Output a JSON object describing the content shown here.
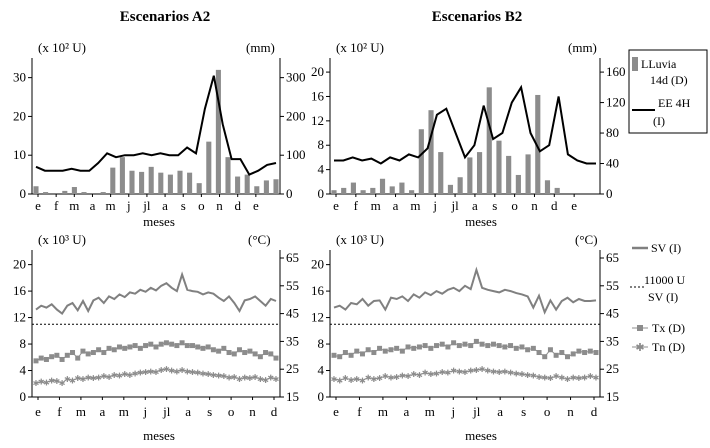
{
  "titles": {
    "a2": "Escenarios A2",
    "b2": "Escenarios B2"
  },
  "colors": {
    "bar": "#8c8c8c",
    "line": "#000000",
    "sv": "#808080",
    "tx": "#8c8c8c",
    "tn": "#8c8c8c",
    "threshold": "#000000"
  },
  "legend_top": {
    "rain": [
      "LLuvia",
      "14d (D)"
    ],
    "ee": [
      "EE 4H",
      "(I)"
    ]
  },
  "legend_bottom": {
    "sv": "SV (I)",
    "threshold": [
      "11000 U",
      "SV (I)"
    ],
    "tx": "Tx (D)",
    "tn": "Tn (D)"
  },
  "chart_data": [
    {
      "type": "bar+line",
      "id": "a2_top",
      "title": "Escenarios A2",
      "left_unit": "(x 10² U)",
      "right_unit": "(mm)",
      "xlabel": "meses",
      "month_labels": [
        "e",
        "f",
        "m",
        "a",
        "m",
        "j",
        "jl",
        "a",
        "s",
        "o",
        "n",
        "d",
        "e"
      ],
      "left_ticks": [
        "0",
        "10",
        "20",
        "30"
      ],
      "right_ticks": [
        "0",
        "100",
        "200",
        "300"
      ],
      "ylim_left": [
        0,
        33
      ],
      "ylim_right": [
        0,
        330
      ],
      "series": [
        {
          "name": "LLuvia 14d (D)",
          "kind": "bar",
          "axis": "right",
          "values": [
            20,
            5,
            0,
            8,
            18,
            5,
            0,
            5,
            68,
            95,
            60,
            57,
            70,
            55,
            50,
            60,
            55,
            28,
            135,
            320,
            95,
            45,
            50,
            20,
            35,
            38
          ]
        },
        {
          "name": "EE 4H (I)",
          "kind": "line",
          "axis": "left",
          "values": [
            7,
            6,
            6,
            6,
            6.5,
            6,
            6,
            8,
            10.5,
            9.5,
            10,
            10,
            10.5,
            10,
            10.5,
            10,
            10,
            12,
            10.5,
            22,
            30.5,
            18,
            9,
            9,
            5,
            6,
            7.5,
            8
          ]
        }
      ]
    },
    {
      "type": "bar+line",
      "id": "b2_top",
      "title": "Escenarios B2",
      "left_unit": "(x 10² U)",
      "right_unit": "(mm)",
      "xlabel": "meses",
      "month_labels": [
        "e",
        "f",
        "m",
        "a",
        "m",
        "j",
        "jl",
        "a",
        "s",
        "o",
        "n",
        "d",
        "e"
      ],
      "left_ticks": [
        "0",
        "4",
        "8",
        "12",
        "16",
        "20"
      ],
      "right_ticks": [
        "0",
        "40",
        "80",
        "120",
        "160"
      ],
      "ylim_left": [
        0,
        21
      ],
      "ylim_right": [
        0,
        168
      ],
      "series": [
        {
          "name": "LLuvia 14d (D)",
          "kind": "bar",
          "axis": "right",
          "values": [
            5,
            8,
            15,
            5,
            8,
            20,
            10,
            15,
            5,
            85,
            110,
            55,
            12,
            22,
            48,
            55,
            140,
            70,
            50,
            25,
            52,
            130,
            18,
            8,
            0,
            0,
            0,
            0
          ]
        },
        {
          "name": "EE 4H (I)",
          "kind": "line",
          "axis": "left",
          "values": [
            5.5,
            5.5,
            6,
            5.5,
            5.8,
            5,
            6,
            5.5,
            6.5,
            6,
            7.5,
            13,
            14,
            10,
            6,
            8,
            14.5,
            9,
            10,
            15,
            17.5,
            10,
            7,
            8,
            16,
            6.5,
            5.5,
            5,
            5
          ]
        }
      ]
    },
    {
      "type": "line",
      "id": "a2_bottom",
      "left_unit": "(x 10³ U)",
      "right_unit": "(°C)",
      "xlabel": "meses",
      "month_labels": [
        "e",
        "f",
        "m",
        "a",
        "m",
        "j",
        "jl",
        "a",
        "s",
        "o",
        "n",
        "d"
      ],
      "left_ticks": [
        "0",
        "4",
        "8",
        "12",
        "16",
        "20"
      ],
      "right_ticks": [
        "15",
        "25",
        "35",
        "45",
        "55",
        "65"
      ],
      "ylim_left": [
        0,
        21
      ],
      "ylim_right": [
        15,
        65
      ],
      "threshold": 11,
      "series": [
        {
          "name": "SV (I)",
          "kind": "line",
          "axis": "left",
          "values": [
            13.2,
            13.8,
            13.5,
            14,
            13.2,
            12.6,
            13.8,
            14.2,
            13.1,
            14.5,
            13,
            14.6,
            15,
            14.2,
            15.2,
            14.8,
            15.5,
            15.1,
            15.8,
            15.6,
            16.2,
            15.9,
            16.5,
            16.1,
            16.8,
            17.2,
            16.5,
            16,
            18.5,
            16.2,
            16,
            15.9,
            15.5,
            15.8,
            15.6,
            15,
            14.5,
            15.2,
            14.2,
            13,
            14.6,
            14.8,
            15.2,
            14.5,
            13.8,
            14.8,
            14.5
          ]
        },
        {
          "name": "Tx (D)",
          "kind": "marker-line",
          "axis": "right",
          "values": [
            28,
            29,
            28.5,
            29.5,
            30,
            28.5,
            30,
            31,
            29,
            31.5,
            30.5,
            31,
            32,
            31,
            32.5,
            32,
            33,
            32.5,
            33,
            33.5,
            32.5,
            33.5,
            34,
            33,
            34,
            34.5,
            34,
            33.5,
            34.5,
            33.5,
            33.5,
            33,
            32.5,
            33,
            32,
            31.5,
            32.5,
            31,
            30.5,
            32,
            31,
            31.5,
            30.5,
            29.5,
            31,
            30.5,
            29
          ]
        },
        {
          "name": "Tn (D)",
          "kind": "marker-line",
          "axis": "right",
          "values": [
            20,
            20.5,
            20.2,
            21,
            20.8,
            20,
            21.5,
            21,
            21.8,
            21.5,
            22,
            21.8,
            22,
            22.5,
            22.2,
            23,
            22.8,
            23.2,
            23,
            23.5,
            23.8,
            24,
            24.2,
            24,
            24.8,
            25,
            24.5,
            24.2,
            24.8,
            24.2,
            24,
            23.8,
            23.5,
            23.2,
            23,
            22.8,
            22.5,
            22,
            22.2,
            21.5,
            22,
            21.8,
            22.2,
            21.5,
            21.2,
            22,
            21.5
          ]
        }
      ]
    },
    {
      "type": "line",
      "id": "b2_bottom",
      "left_unit": "(x 10³ U)",
      "right_unit": "(°C)",
      "xlabel": "meses",
      "month_labels": [
        "e",
        "f",
        "m",
        "a",
        "m",
        "j",
        "jl",
        "a",
        "s",
        "o",
        "n",
        "d"
      ],
      "left_ticks": [
        "0",
        "4",
        "8",
        "12",
        "16",
        "20"
      ],
      "right_ticks": [
        "15",
        "25",
        "35",
        "45",
        "55",
        "65"
      ],
      "ylim_left": [
        0,
        21
      ],
      "ylim_right": [
        15,
        65
      ],
      "threshold": 11,
      "series": [
        {
          "name": "SV (I)",
          "kind": "line",
          "axis": "left",
          "values": [
            13.5,
            13.8,
            13.2,
            14.2,
            14,
            14.8,
            13.8,
            14.5,
            14.6,
            13.2,
            15,
            14.8,
            15.2,
            14.5,
            15.5,
            15,
            15.8,
            15.4,
            16,
            15.6,
            16.2,
            16.5,
            16,
            16.8,
            16.3,
            19.2,
            16.5,
            16.2,
            16,
            15.8,
            16.2,
            16,
            15.7,
            15.5,
            15.2,
            13.5,
            15.3,
            12.8,
            14.6,
            13.2,
            14.5,
            15,
            14.3,
            14.8,
            14.5,
            14.5,
            14.6
          ]
        },
        {
          "name": "Tx (D)",
          "kind": "marker-line",
          "axis": "right",
          "values": [
            30,
            29.5,
            31,
            30,
            31.5,
            30.5,
            32,
            31,
            32.5,
            31.5,
            32,
            32.5,
            31.5,
            33,
            32.5,
            33,
            33.5,
            32.5,
            33.5,
            34,
            33,
            34.5,
            33.5,
            34,
            33.5,
            35,
            34,
            33.5,
            34,
            33.5,
            33,
            33.5,
            32.5,
            33,
            32,
            32.5,
            31,
            29.5,
            32,
            30,
            31,
            29.5,
            30.5,
            31.5,
            31,
            31.5,
            31
          ]
        },
        {
          "name": "Tn (D)",
          "kind": "marker-line",
          "axis": "right",
          "values": [
            21.5,
            21,
            21.8,
            21.2,
            21.5,
            21,
            22,
            21.5,
            21.8,
            22.5,
            22,
            22.2,
            22.8,
            22.5,
            23.2,
            23,
            23.8,
            23.2,
            23.5,
            24,
            23.8,
            24.5,
            24.2,
            24,
            24.5,
            24.8,
            25,
            24.5,
            24.2,
            24,
            24.2,
            23.8,
            23.5,
            23.2,
            23,
            22.8,
            22.2,
            22,
            21.8,
            22.5,
            22,
            21.5,
            22,
            21.8,
            22,
            22.5,
            22
          ]
        }
      ]
    }
  ]
}
